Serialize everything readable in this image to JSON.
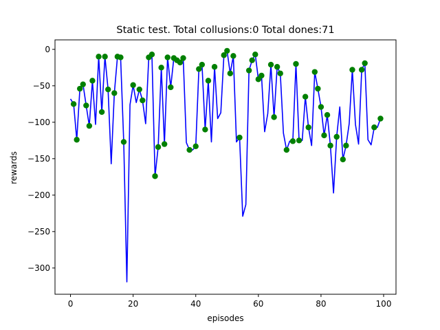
{
  "chart_data": {
    "type": "line",
    "title": "Static test. Total collusions:0 Total dones:71",
    "xlabel": "episodes",
    "ylabel": "rewards",
    "xlim": [
      -4.95,
      103.95
    ],
    "ylim": [
      -336,
      13
    ],
    "xticks": [
      0,
      20,
      40,
      60,
      80,
      100
    ],
    "yticks": [
      0,
      -50,
      -100,
      -150,
      -200,
      -250,
      -300
    ],
    "grid": false,
    "line_color": "#0000ff",
    "marker_color": "#008000",
    "series": [
      {
        "x": [
          0,
          1,
          2,
          3,
          4,
          5,
          6,
          7,
          8,
          9,
          10,
          11,
          12,
          13,
          14,
          15,
          16,
          17,
          18,
          19,
          20,
          21,
          22,
          23,
          24,
          25,
          26,
          27,
          28,
          29,
          30,
          31,
          32,
          33,
          34,
          35,
          36,
          37,
          38,
          39,
          40,
          41,
          42,
          43,
          44,
          45,
          46,
          47,
          48,
          49,
          50,
          51,
          52,
          53,
          54,
          55,
          56,
          57,
          58,
          59,
          60,
          61,
          62,
          63,
          64,
          65,
          66,
          67,
          68,
          69,
          70,
          71,
          72,
          73,
          74,
          75,
          76,
          77,
          78,
          79,
          80,
          81,
          82,
          83,
          84,
          85,
          86,
          87,
          88,
          89,
          90,
          91,
          92,
          93,
          94,
          95,
          96,
          97,
          98,
          99
        ],
        "y": [
          -68,
          -75,
          -124,
          -54,
          -48,
          -77,
          -105,
          -43,
          -103,
          -10,
          -86,
          -10,
          -55,
          -157,
          -60,
          -10,
          -11,
          -127,
          -319,
          -76,
          -49,
          -73,
          -55,
          -70,
          -102,
          -11,
          -7,
          -174,
          -134,
          -25,
          -130,
          -11,
          -52,
          -12,
          -15,
          -18,
          -12,
          -128,
          -138,
          -138,
          -133,
          -27,
          -21,
          -110,
          -43,
          -127,
          -24,
          -95,
          -87,
          -8,
          -2,
          -33,
          -9,
          -127,
          -121,
          -229,
          -213,
          -29,
          -15,
          -7,
          -41,
          -36,
          -113,
          -88,
          -21,
          -93,
          -24,
          -33,
          -115,
          -138,
          -126,
          -126,
          -20,
          -125,
          -125,
          -65,
          -107,
          -132,
          -31,
          -54,
          -79,
          -118,
          -90,
          -132,
          -197,
          -120,
          -79,
          -151,
          -132,
          -102,
          -28,
          -103,
          -130,
          -28,
          -19,
          -124,
          -131,
          -107,
          -107,
          -95
        ]
      }
    ],
    "markers": {
      "x": [
        1,
        2,
        3,
        4,
        5,
        6,
        7,
        9,
        10,
        11,
        12,
        14,
        15,
        16,
        17,
        20,
        22,
        23,
        25,
        26,
        27,
        28,
        29,
        30,
        31,
        32,
        33,
        34,
        35,
        36,
        38,
        40,
        41,
        42,
        43,
        44,
        46,
        49,
        50,
        51,
        52,
        54,
        57,
        58,
        59,
        60,
        61,
        64,
        65,
        66,
        67,
        69,
        71,
        72,
        73,
        75,
        76,
        78,
        79,
        80,
        81,
        82,
        83,
        85,
        87,
        88,
        90,
        93,
        94,
        97,
        99
      ],
      "y": [
        -75,
        -124,
        -54,
        -48,
        -77,
        -105,
        -43,
        -10,
        -86,
        -10,
        -55,
        -60,
        -10,
        -11,
        -127,
        -49,
        -55,
        -70,
        -11,
        -7,
        -174,
        -134,
        -25,
        -130,
        -11,
        -52,
        -12,
        -15,
        -18,
        -12,
        -138,
        -133,
        -27,
        -21,
        -110,
        -43,
        -24,
        -8,
        -2,
        -33,
        -9,
        -121,
        -29,
        -15,
        -7,
        -41,
        -36,
        -21,
        -93,
        -24,
        -33,
        -138,
        -126,
        -20,
        -125,
        -65,
        -107,
        -31,
        -54,
        -79,
        -118,
        -90,
        -132,
        -120,
        -151,
        -132,
        -28,
        -28,
        -19,
        -107,
        -95
      ]
    }
  }
}
